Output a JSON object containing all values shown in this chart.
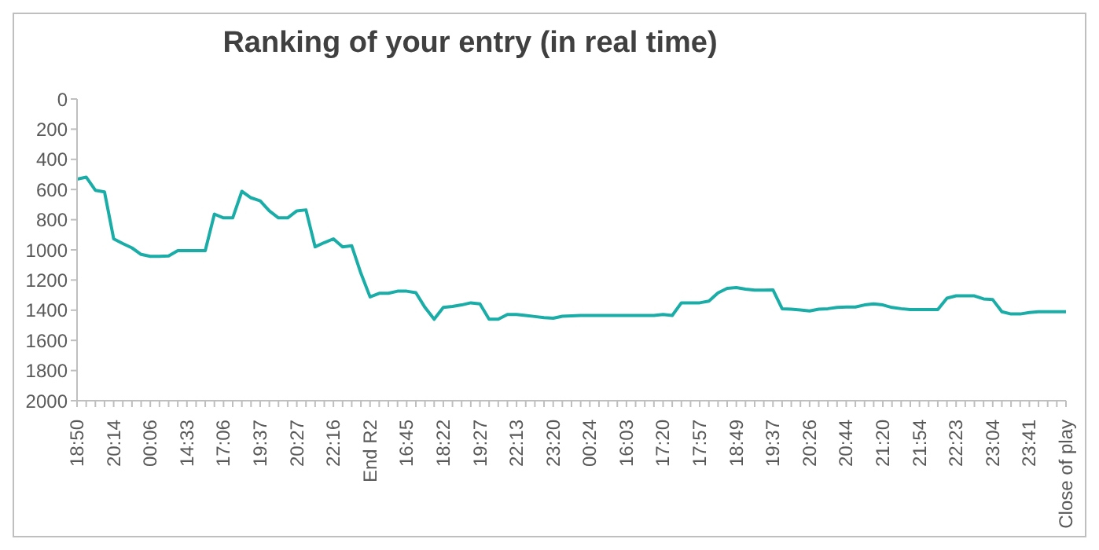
{
  "chart_data": {
    "type": "line",
    "title": "Ranking of your entry (in real time)",
    "categories": [
      "18:50",
      null,
      null,
      null,
      "20:14",
      null,
      null,
      null,
      "00:06",
      null,
      null,
      null,
      "14:33",
      null,
      null,
      null,
      "17:06",
      null,
      null,
      null,
      "19:37",
      null,
      null,
      null,
      "20:27",
      null,
      null,
      null,
      "22:16",
      null,
      null,
      null,
      "End R2",
      null,
      null,
      null,
      "16:45",
      null,
      null,
      null,
      "18:22",
      null,
      null,
      null,
      "19:27",
      null,
      null,
      null,
      "22:13",
      null,
      null,
      null,
      "23:20",
      null,
      null,
      null,
      "00:24",
      null,
      null,
      null,
      "16:03",
      null,
      null,
      null,
      "17:20",
      null,
      null,
      null,
      "17:57",
      null,
      null,
      null,
      "18:49",
      null,
      null,
      null,
      "19:37",
      null,
      null,
      null,
      "20:26",
      null,
      null,
      null,
      "20:44",
      null,
      null,
      null,
      "21:20",
      null,
      null,
      null,
      "21:54",
      null,
      null,
      null,
      "22:23",
      null,
      null,
      null,
      "23:04",
      null,
      null,
      null,
      "23:41",
      null,
      null,
      null,
      "Close of play"
    ],
    "series": [
      {
        "color": "#1aada8",
        "values": [
          532,
          518,
          605,
          616,
          927,
          958,
          987,
          1030,
          1043,
          1043,
          1040,
          1005,
          1005,
          1005,
          1005,
          763,
          788,
          788,
          612,
          655,
          675,
          742,
          788,
          788,
          742,
          735,
          980,
          952,
          927,
          980,
          973,
          1155,
          1312,
          1288,
          1288,
          1274,
          1274,
          1284,
          1382,
          1460,
          1382,
          1375,
          1365,
          1351,
          1358,
          1460,
          1460,
          1428,
          1428,
          1435,
          1442,
          1449,
          1453,
          1440,
          1438,
          1435,
          1435,
          1435,
          1435,
          1435,
          1435,
          1435,
          1435,
          1435,
          1428,
          1435,
          1351,
          1351,
          1351,
          1340,
          1285,
          1255,
          1250,
          1260,
          1267,
          1267,
          1265,
          1390,
          1393,
          1398,
          1405,
          1393,
          1390,
          1382,
          1379,
          1379,
          1365,
          1358,
          1365,
          1382,
          1390,
          1396,
          1396,
          1396,
          1396,
          1320,
          1305,
          1305,
          1305,
          1325,
          1330,
          1410,
          1425,
          1425,
          1415,
          1410,
          1410,
          1410,
          1410
        ]
      }
    ],
    "ylim": [
      2000,
      0
    ],
    "yticks": [
      0,
      200,
      400,
      600,
      800,
      1000,
      1200,
      1400,
      1600,
      1800,
      2000
    ],
    "grid": false,
    "legend": false,
    "marker": "none",
    "line_style": "solid"
  }
}
